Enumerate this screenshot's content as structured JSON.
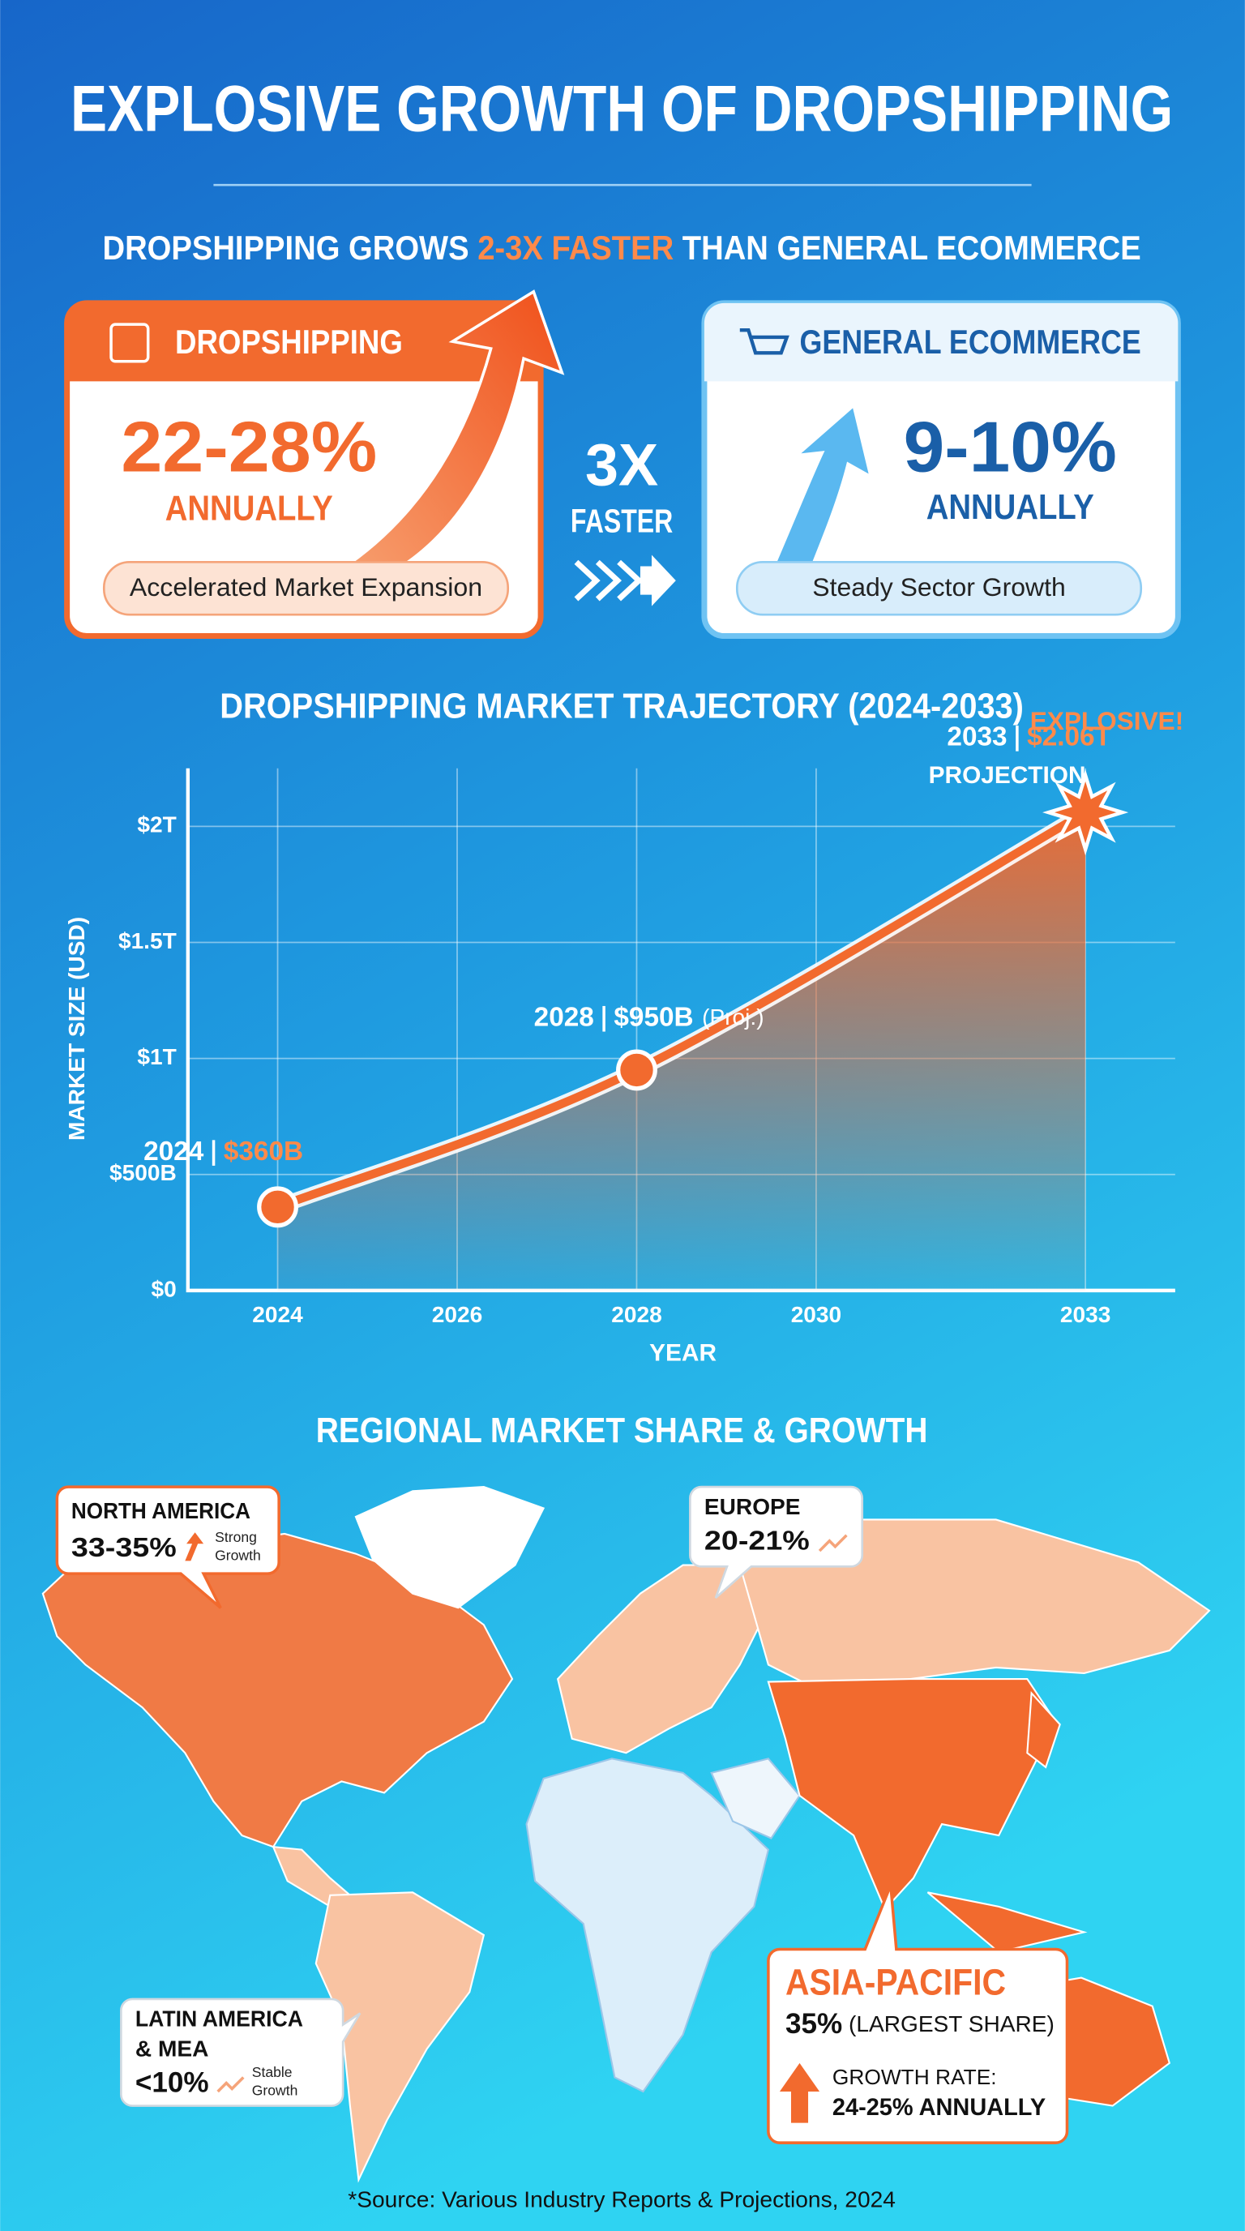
{
  "title": "EXPLOSIVE GROWTH OF DROPSHIPPING",
  "subtitle": {
    "before": "DROPSHIPPING GROWS",
    "highlight": "2-3X FASTER",
    "after": "THAN GENERAL ECOMMERCE"
  },
  "comparison": {
    "dropshipping": {
      "label": "DROPSHIPPING",
      "rate": "22-28%",
      "period": "ANNUALLY",
      "tagline": "Accelerated Market Expansion"
    },
    "ecommerce": {
      "label": "GENERAL ECOMMERCE",
      "rate": "9-10%",
      "period": "ANNUALLY",
      "tagline": "Steady Sector Growth"
    },
    "multiplier": "3X",
    "multiplier_label": "FASTER"
  },
  "chart_data": {
    "type": "line",
    "title": "DROPSHIPPING MARKET TRAJECTORY (2024-2033)",
    "x_label": "YEAR",
    "y_label": "MARKET SIZE (USD)",
    "x": [
      2024,
      2028,
      2033
    ],
    "values": [
      360,
      950,
      2060
    ],
    "value_labels": [
      "$360B",
      "$950B",
      "$2.06T"
    ],
    "color": "#f26a2e",
    "xlim": [
      2023,
      2034
    ],
    "xticks": [
      2024,
      2026,
      2028,
      2030,
      2033
    ],
    "ylim": [
      0,
      2250
    ],
    "yticks": [
      {
        "value": 0,
        "label": "$0"
      },
      {
        "value": 500,
        "label": "$500B"
      },
      {
        "value": 1000,
        "label": "$1T"
      },
      {
        "value": 1500,
        "label": "$1.5T"
      },
      {
        "value": 2000,
        "label": "$2T"
      }
    ],
    "grid": true,
    "annotations": {
      "proj": "(Proj.)",
      "projection": "PROJECTION",
      "explosive": "EXPLOSIVE!"
    }
  },
  "regional": {
    "title": "REGIONAL MARKET SHARE & GROWTH",
    "north_america": {
      "name": "NORTH AMERICA",
      "share": "33-35%",
      "note": [
        "Strong",
        "Growth"
      ]
    },
    "europe": {
      "name": "EUROPE",
      "share": "20-21%"
    },
    "asia_pacific": {
      "name": "ASIA-PACIFIC",
      "share": "35%",
      "share_note": "(LARGEST SHARE)",
      "growth_label": "GROWTH RATE:",
      "growth": "24-25% ANNUALLY"
    },
    "latin_america_mea": {
      "name": [
        "LATIN AMERICA",
        "& MEA"
      ],
      "share": "<10%",
      "note": [
        "Stable",
        "Growth"
      ]
    }
  },
  "source": "*Source: Various Industry Reports & Projections, 2024"
}
